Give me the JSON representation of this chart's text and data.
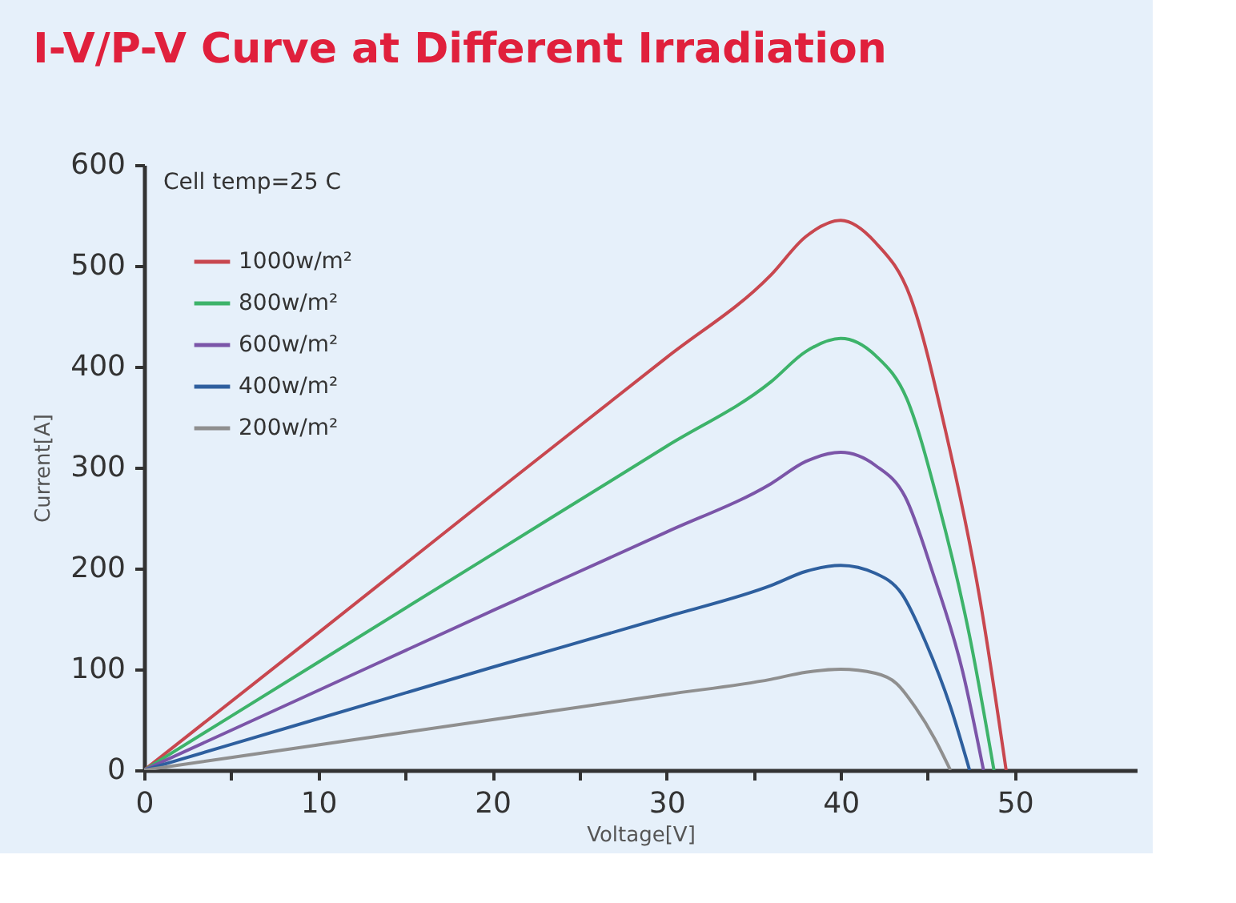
{
  "chart_data": {
    "type": "line",
    "title": "I-V/P-V Curve at Different Irradiation",
    "xlabel": "Voltage[V]",
    "ylabel": "Current[A]",
    "annotations": [
      "Cell temp=25 C"
    ],
    "xlim": [
      0,
      57
    ],
    "ylim": [
      0,
      600
    ],
    "xticks": [
      0,
      {
        "value": 5,
        "label": null
      },
      10,
      {
        "value": 15,
        "label": null
      },
      20,
      {
        "value": 25,
        "label": null
      },
      30,
      {
        "value": 35,
        "label": null
      },
      40,
      {
        "value": 45,
        "label": null
      },
      50
    ],
    "yticks": [
      0,
      100,
      200,
      300,
      400,
      500,
      600
    ],
    "grid": false,
    "legend": "top left",
    "marker": "none",
    "line_style": "solid",
    "series": [
      {
        "name": "1000w/m²",
        "color": "#c8474f",
        "x": [
          0,
          10,
          20,
          30,
          36,
          38,
          40,
          42,
          44,
          46,
          48,
          49.5
        ],
        "values": [
          0,
          136,
          273,
          409,
          491,
          529,
          545,
          523,
          469,
          338,
          169,
          0
        ]
      },
      {
        "name": "800w/m²",
        "color": "#3db36a",
        "x": [
          0,
          10,
          20,
          30,
          36,
          38,
          40,
          42,
          43.8,
          45.6,
          47.4,
          48.8
        ],
        "values": [
          0,
          107,
          214,
          321,
          385,
          415,
          428,
          411,
          368,
          265,
          133,
          0
        ]
      },
      {
        "name": "600w/m²",
        "color": "#7b55a8",
        "x": [
          0,
          10,
          20,
          30,
          36,
          38,
          40,
          42,
          43.7,
          45.3,
          47.0,
          48.2
        ],
        "values": [
          0,
          79,
          158,
          236,
          284,
          306,
          315,
          302,
          271,
          195,
          98,
          0
        ]
      },
      {
        "name": "400w/m²",
        "color": "#2e5f9e",
        "x": [
          0,
          10,
          20,
          30,
          36,
          38,
          40,
          42,
          43.5,
          44.9,
          46.3,
          47.4
        ],
        "values": [
          0,
          51,
          102,
          152,
          183,
          197,
          203,
          195,
          175,
          126,
          63,
          0
        ]
      },
      {
        "name": "200w/m²",
        "color": "#8f8f8f",
        "x": [
          0,
          10,
          20,
          30,
          36,
          38,
          40,
          42,
          43.2,
          44.3,
          45.4,
          46.3
        ],
        "values": [
          0,
          25,
          50,
          75,
          90,
          97,
          100,
          96,
          86,
          62,
          31,
          0
        ]
      }
    ]
  }
}
